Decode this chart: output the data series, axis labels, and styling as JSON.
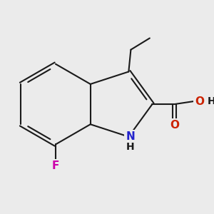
{
  "bg_color": "#ebebeb",
  "bond_color": "#1a1a1a",
  "bond_width": 1.5,
  "atom_colors": {
    "N": "#2222cc",
    "O": "#cc2200",
    "F": "#cc00aa",
    "C": "#1a1a1a",
    "H": "#1a1a1a"
  },
  "font_size": 11
}
